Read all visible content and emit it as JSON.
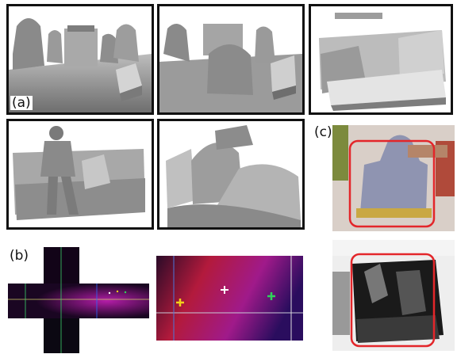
{
  "labels": {
    "a": "(a)",
    "b": "(b)",
    "c": "(c)"
  },
  "colors": {
    "frame": "#111111",
    "highlight_box": "#e3262a",
    "cross_yellow": "#f3d21a",
    "cross_green": "#2fd35a",
    "cross_white": "#ffffff"
  },
  "icons": {
    "marker_yellow": "yellow-plus-icon",
    "marker_white": "white-plus-icon",
    "marker_green": "green-plus-icon"
  }
}
